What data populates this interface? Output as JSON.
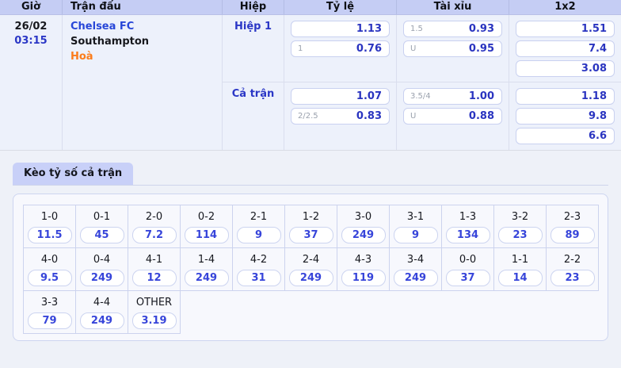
{
  "odds_table": {
    "headers": [
      "Giờ",
      "Trận đấu",
      "Hiệp",
      "Tỷ lệ",
      "Tài xỉu",
      "1x2"
    ],
    "match": {
      "date": "26/02",
      "time": "03:15",
      "home": "Chelsea FC",
      "away": "Southampton",
      "draw": "Hoà"
    },
    "sections": [
      {
        "label": "Hiệp 1",
        "ty_le": [
          {
            "hdp": "",
            "odds": "1.13"
          },
          {
            "hdp": "1",
            "odds": "0.76"
          }
        ],
        "tai_xiu": [
          {
            "hdp": "1.5",
            "odds": "0.93"
          },
          {
            "hdp": "U",
            "odds": "0.95"
          }
        ],
        "one_x_two": [
          "1.51",
          "7.4",
          "3.08"
        ]
      },
      {
        "label": "Cả trận",
        "ty_le": [
          {
            "hdp": "",
            "odds": "1.07"
          },
          {
            "hdp": "2/2.5",
            "odds": "0.83"
          }
        ],
        "tai_xiu": [
          {
            "hdp": "3.5/4",
            "odds": "1.00"
          },
          {
            "hdp": "U",
            "odds": "0.88"
          }
        ],
        "one_x_two": [
          "1.18",
          "9.8",
          "6.6"
        ]
      }
    ]
  },
  "correct_score": {
    "tab_label": "Kèo tỷ số cả trận",
    "rows": [
      [
        {
          "score": "1-0",
          "odds": "11.5"
        },
        {
          "score": "0-1",
          "odds": "45"
        },
        {
          "score": "2-0",
          "odds": "7.2"
        },
        {
          "score": "0-2",
          "odds": "114"
        },
        {
          "score": "2-1",
          "odds": "9"
        },
        {
          "score": "1-2",
          "odds": "37"
        },
        {
          "score": "3-0",
          "odds": "249"
        },
        {
          "score": "3-1",
          "odds": "9"
        },
        {
          "score": "1-3",
          "odds": "134"
        },
        {
          "score": "3-2",
          "odds": "23"
        },
        {
          "score": "2-3",
          "odds": "89"
        }
      ],
      [
        {
          "score": "4-0",
          "odds": "9.5"
        },
        {
          "score": "0-4",
          "odds": "249"
        },
        {
          "score": "4-1",
          "odds": "12"
        },
        {
          "score": "1-4",
          "odds": "249"
        },
        {
          "score": "4-2",
          "odds": "31"
        },
        {
          "score": "2-4",
          "odds": "249"
        },
        {
          "score": "4-3",
          "odds": "119"
        },
        {
          "score": "3-4",
          "odds": "249"
        },
        {
          "score": "0-0",
          "odds": "37"
        },
        {
          "score": "1-1",
          "odds": "14"
        },
        {
          "score": "2-2",
          "odds": "23"
        }
      ],
      [
        {
          "score": "3-3",
          "odds": "79"
        },
        {
          "score": "4-4",
          "odds": "249"
        },
        {
          "score": "OTHER",
          "odds": "3.19"
        }
      ]
    ]
  },
  "colors": {
    "accent_blue": "#2b37c6",
    "odds_blue": "#2a34c0",
    "grid_odds_blue": "#3745da",
    "team_blue": "#2847d8",
    "draw_orange": "#fb7c1a",
    "header_bg": "#c5cdf4",
    "tab_bg": "#c8d0f8"
  }
}
